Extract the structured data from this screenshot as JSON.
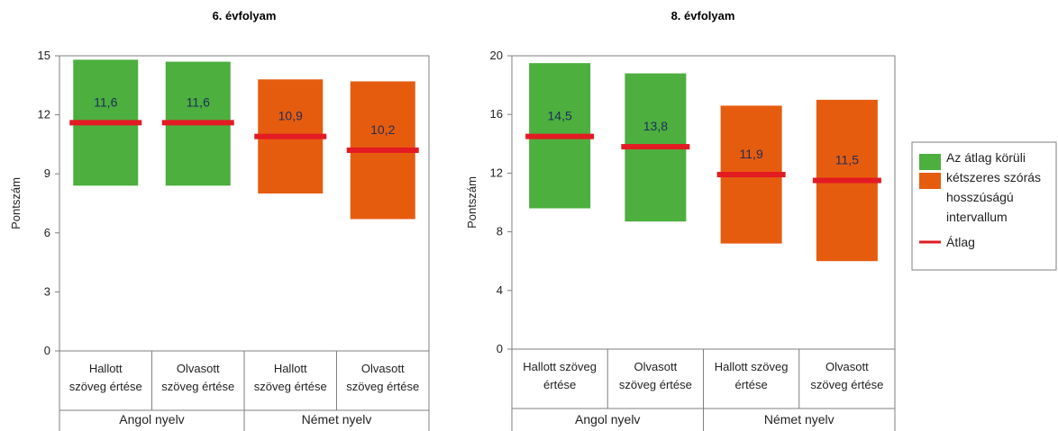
{
  "colors": {
    "english": "#4caf3e",
    "german": "#e65c0f",
    "mean": "#e31b23",
    "axis": "#7f7f7f",
    "label": "#1f2d5a"
  },
  "legend": {
    "interval_lines": [
      "Az átlag körüli",
      "kétszeres szórás",
      "hosszúságú",
      "intervallum"
    ],
    "mean": "Átlag"
  },
  "chart_data": [
    {
      "type": "bar",
      "title": "6. évfolyam",
      "ylabel": "Pontszám",
      "ylim": [
        0,
        15
      ],
      "yticks": [
        "0",
        "3",
        "6",
        "9",
        "12",
        "15"
      ],
      "groups": [
        {
          "name": "Angol nyelv",
          "color": "english"
        },
        {
          "name": "Német nyelv",
          "color": "german"
        }
      ],
      "categories": [
        {
          "lines": [
            "Hallott",
            "szöveg értése"
          ],
          "group": 0,
          "low": 8.4,
          "high": 14.8,
          "mean": 11.6,
          "label": "11,6"
        },
        {
          "lines": [
            "Olvasott",
            "szöveg értése"
          ],
          "group": 0,
          "low": 8.4,
          "high": 14.7,
          "mean": 11.6,
          "label": "11,6"
        },
        {
          "lines": [
            "Hallott",
            "szöveg értése"
          ],
          "group": 1,
          "low": 8.0,
          "high": 13.8,
          "mean": 10.9,
          "label": "10,9"
        },
        {
          "lines": [
            "Olvasott",
            "szöveg értése"
          ],
          "group": 1,
          "low": 6.7,
          "high": 13.7,
          "mean": 10.2,
          "label": "10,2"
        }
      ]
    },
    {
      "type": "bar",
      "title": "8. évfolyam",
      "ylabel": "Pontszám",
      "ylim": [
        0,
        20
      ],
      "yticks": [
        "0",
        "4",
        "8",
        "12",
        "16",
        "20"
      ],
      "groups": [
        {
          "name": "Angol nyelv",
          "color": "english"
        },
        {
          "name": "Német nyelv",
          "color": "german"
        }
      ],
      "categories": [
        {
          "lines": [
            "Hallott szöveg",
            "értése"
          ],
          "group": 0,
          "low": 9.6,
          "high": 19.5,
          "mean": 14.5,
          "label": "14,5"
        },
        {
          "lines": [
            "Olvasott",
            "szöveg értése"
          ],
          "group": 0,
          "low": 8.7,
          "high": 18.8,
          "mean": 13.8,
          "label": "13,8"
        },
        {
          "lines": [
            "Hallott szöveg",
            "értése"
          ],
          "group": 1,
          "low": 7.2,
          "high": 16.6,
          "mean": 11.9,
          "label": "11,9"
        },
        {
          "lines": [
            "Olvasott",
            "szöveg értése"
          ],
          "group": 1,
          "low": 6.0,
          "high": 17.0,
          "mean": 11.5,
          "label": "11,5"
        }
      ]
    }
  ]
}
